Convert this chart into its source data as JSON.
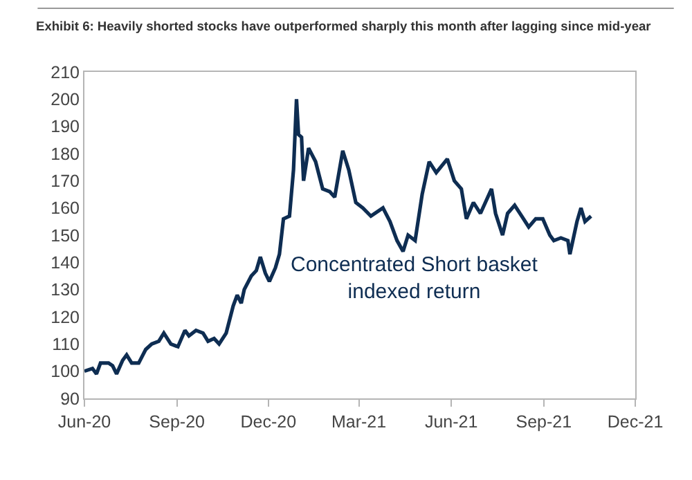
{
  "chart_data": {
    "type": "line",
    "title": "Exhibit 6: Heavily shorted stocks have outperformed sharply this month after lagging since mid-year",
    "annotations": [
      "Concentrated Short basket\nindexed return"
    ],
    "x": [
      "2020-06-01",
      "2020-06-09",
      "2020-06-13",
      "2020-06-17",
      "2020-06-25",
      "2020-06-29",
      "2020-07-03",
      "2020-07-09",
      "2020-07-13",
      "2020-07-18",
      "2020-07-25",
      "2020-08-01",
      "2020-08-07",
      "2020-08-14",
      "2020-08-19",
      "2020-08-26",
      "2020-09-02",
      "2020-09-09",
      "2020-09-13",
      "2020-09-20",
      "2020-09-27",
      "2020-10-02",
      "2020-10-08",
      "2020-10-13",
      "2020-10-20",
      "2020-10-27",
      "2020-10-31",
      "2020-11-04",
      "2020-11-07",
      "2020-11-14",
      "2020-11-19",
      "2020-11-23",
      "2020-11-28",
      "2020-12-02",
      "2020-12-08",
      "2020-12-12",
      "2020-12-16",
      "2020-12-22",
      "2020-12-26",
      "2020-12-29",
      "2020-12-31",
      "2021-01-03",
      "2021-01-05",
      "2021-01-10",
      "2021-01-17",
      "2021-01-24",
      "2021-01-31",
      "2021-02-05",
      "2021-02-13",
      "2021-02-19",
      "2021-02-26",
      "2021-03-05",
      "2021-03-13",
      "2021-03-25",
      "2021-04-01",
      "2021-04-08",
      "2021-04-14",
      "2021-04-19",
      "2021-04-26",
      "2021-05-03",
      "2021-05-10",
      "2021-05-17",
      "2021-05-28",
      "2021-06-04",
      "2021-06-11",
      "2021-06-16",
      "2021-06-23",
      "2021-06-30",
      "2021-07-11",
      "2021-07-15",
      "2021-07-22",
      "2021-07-27",
      "2021-08-03",
      "2021-08-10",
      "2021-08-17",
      "2021-08-24",
      "2021-08-31",
      "2021-09-07",
      "2021-09-11",
      "2021-09-18",
      "2021-09-25",
      "2021-09-27",
      "2021-10-04",
      "2021-10-08",
      "2021-10-12",
      "2021-10-18"
    ],
    "series": [
      {
        "color": "#0e2d52",
        "values": [
          100,
          101,
          99,
          103,
          103,
          102,
          99,
          104,
          106,
          103,
          103,
          108,
          110,
          111,
          114,
          110,
          109,
          115,
          113,
          115,
          114,
          111,
          112,
          110,
          114,
          124,
          128,
          125,
          130,
          135,
          137,
          142,
          136,
          133,
          138,
          143,
          156,
          157,
          174,
          200,
          187,
          186,
          170,
          182,
          177,
          167,
          166,
          164,
          181,
          174,
          162,
          160,
          157,
          160,
          155,
          148,
          144,
          150,
          148,
          165,
          177,
          173,
          178,
          170,
          167,
          156,
          162,
          158,
          167,
          158,
          150,
          158,
          161,
          157,
          153,
          156,
          156,
          150,
          148,
          149,
          148,
          143,
          155,
          160,
          155,
          157
        ]
      }
    ],
    "xlim": [
      "2020-06-01",
      "2021-12-01"
    ],
    "xticks": [
      {
        "value": "2020-06-01",
        "label": "Jun-20"
      },
      {
        "value": "2020-09-01",
        "label": "Sep-20"
      },
      {
        "value": "2020-12-01",
        "label": "Dec-20"
      },
      {
        "value": "2021-03-01",
        "label": "Mar-21"
      },
      {
        "value": "2021-06-01",
        "label": "Jun-21"
      },
      {
        "value": "2021-09-01",
        "label": "Sep-21"
      },
      {
        "value": "2021-12-01",
        "label": "Dec-21"
      }
    ],
    "ylim": [
      90,
      210
    ],
    "yticks": [
      90,
      100,
      110,
      120,
      130,
      140,
      150,
      160,
      170,
      180,
      190,
      200,
      210
    ],
    "grid": false,
    "marker": "none",
    "line_style": "solid"
  }
}
